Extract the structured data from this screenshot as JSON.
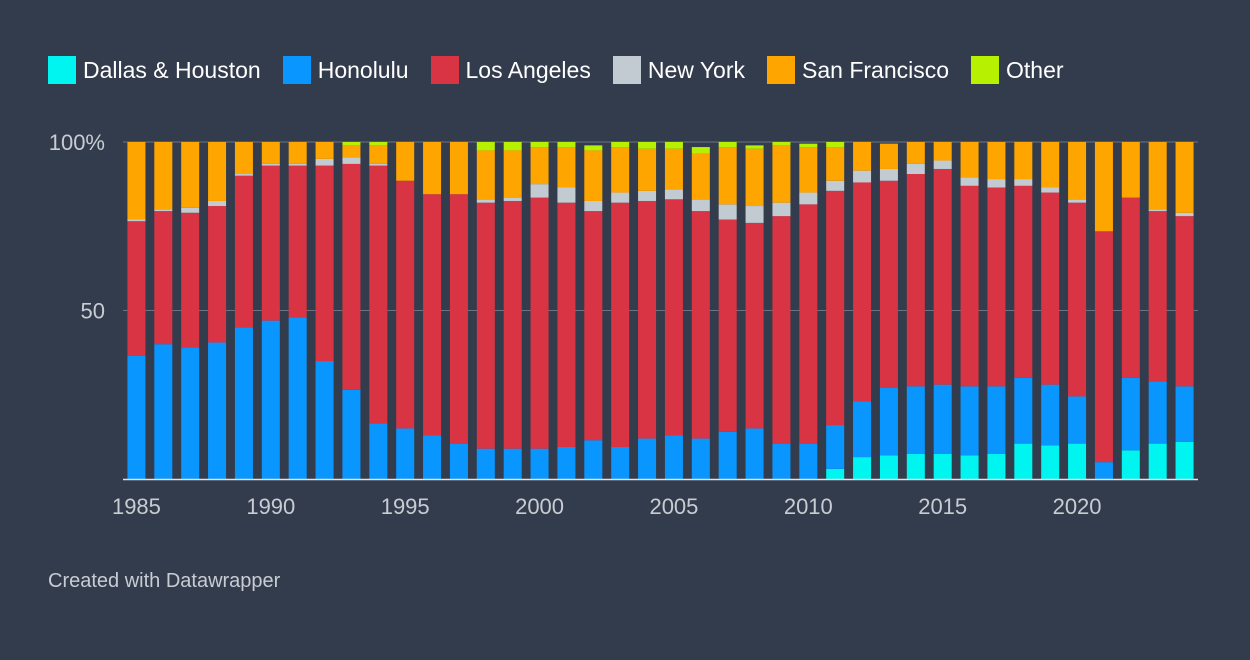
{
  "legend": [
    {
      "name": "Dallas & Houston",
      "color": "#00f5f0"
    },
    {
      "name": "Honolulu",
      "color": "#0a96ff"
    },
    {
      "name": "Los Angeles",
      "color": "#d93444"
    },
    {
      "name": "New York",
      "color": "#c2cbd1"
    },
    {
      "name": "San Francisco",
      "color": "#ffa500"
    },
    {
      "name": "Other",
      "color": "#b7f000"
    }
  ],
  "credit": "Created with Datawrapper",
  "chart_data": {
    "type": "bar",
    "stacked": true,
    "title": "",
    "xlabel": "",
    "ylabel": "",
    "ylim": [
      0,
      100
    ],
    "y_ticks": [
      {
        "value": 100,
        "label": "100%"
      },
      {
        "value": 50,
        "label": "50"
      }
    ],
    "x_tick_labels": [
      "1985",
      "1990",
      "1995",
      "2000",
      "2005",
      "2010",
      "2015",
      "2020"
    ],
    "grid": true,
    "legend_position": "top-left",
    "categories": [
      "1985",
      "1986",
      "1987",
      "1988",
      "1989",
      "1990",
      "1991",
      "1992",
      "1993",
      "1994",
      "1995",
      "1996",
      "1997",
      "1998",
      "1999",
      "2000",
      "2001",
      "2002",
      "2003",
      "2004",
      "2005",
      "2006",
      "2007",
      "2008",
      "2009",
      "2010",
      "2011",
      "2012",
      "2013",
      "2014",
      "2015",
      "2016",
      "2017",
      "2018",
      "2019",
      "2020",
      "2021",
      "2022",
      "2023",
      "2024"
    ],
    "series": [
      {
        "name": "Dallas & Houston",
        "color": "#00f5f0",
        "values": [
          0,
          0,
          0,
          0,
          0,
          0,
          0,
          0,
          0,
          0,
          0,
          0,
          0,
          0,
          0,
          0,
          0,
          0,
          0,
          0,
          0,
          0,
          0,
          0,
          0,
          0,
          3,
          6.5,
          7,
          7.5,
          7.5,
          7,
          7.5,
          10.5,
          10,
          10.5,
          0,
          8.5,
          10.5,
          11
        ]
      },
      {
        "name": "Honolulu",
        "color": "#0a96ff",
        "values": [
          36.5,
          40,
          39,
          40.5,
          45,
          47,
          48,
          35,
          26.5,
          16.5,
          15,
          13,
          10.5,
          9,
          9,
          9,
          9.5,
          11.5,
          9.5,
          12,
          13,
          12,
          14,
          15,
          10.5,
          10.5,
          13,
          16.5,
          20,
          20,
          20.5,
          20.5,
          20,
          19.5,
          18,
          14,
          5,
          21.5,
          18.5,
          16.5
        ]
      },
      {
        "name": "Los Angeles",
        "color": "#d93444",
        "values": [
          40,
          39.5,
          40,
          40.5,
          45,
          46,
          45,
          58,
          67,
          76.5,
          73.5,
          71.5,
          74,
          73,
          73.5,
          74.5,
          72.5,
          68,
          72.5,
          70.5,
          70,
          67.5,
          63,
          61,
          67.5,
          71,
          69.5,
          65,
          61.5,
          63,
          64,
          59.5,
          59,
          57,
          57,
          57.5,
          68.5,
          53.5,
          50.5,
          50.5
        ]
      },
      {
        "name": "New York",
        "color": "#c2cbd1",
        "values": [
          0.5,
          0.5,
          1.5,
          1.5,
          0.5,
          0.5,
          0.5,
          2,
          2,
          0.5,
          0,
          0,
          0,
          1,
          1,
          4,
          4.5,
          3,
          3,
          3,
          3,
          3.5,
          4.5,
          5,
          4,
          3.5,
          3,
          3.5,
          3.5,
          3,
          2.5,
          2.5,
          2.5,
          2,
          1.5,
          1,
          0,
          0,
          0.5,
          1
        ]
      },
      {
        "name": "San Francisco",
        "color": "#ffa500",
        "values": [
          23,
          20,
          19.5,
          17.5,
          9.5,
          6.5,
          6.5,
          5,
          3.5,
          5.5,
          11.5,
          15.5,
          15.5,
          14.5,
          14,
          11,
          12,
          15,
          13.5,
          12.5,
          12,
          13.5,
          17,
          17,
          17,
          13.5,
          10,
          8.5,
          7.5,
          6.5,
          5.5,
          10.5,
          11,
          11,
          13.5,
          17,
          26.5,
          16.5,
          20,
          21
        ]
      },
      {
        "name": "Other",
        "color": "#b7f000",
        "values": [
          0,
          0,
          0,
          0,
          0,
          0,
          0,
          0,
          1,
          1,
          0,
          0,
          0,
          2.5,
          2.5,
          1.5,
          1.5,
          1.5,
          1.5,
          2,
          2,
          2,
          1.5,
          1,
          1,
          1,
          1.5,
          0,
          0,
          0,
          0,
          0,
          0,
          0,
          0,
          0,
          0,
          0,
          0,
          0
        ]
      }
    ]
  }
}
